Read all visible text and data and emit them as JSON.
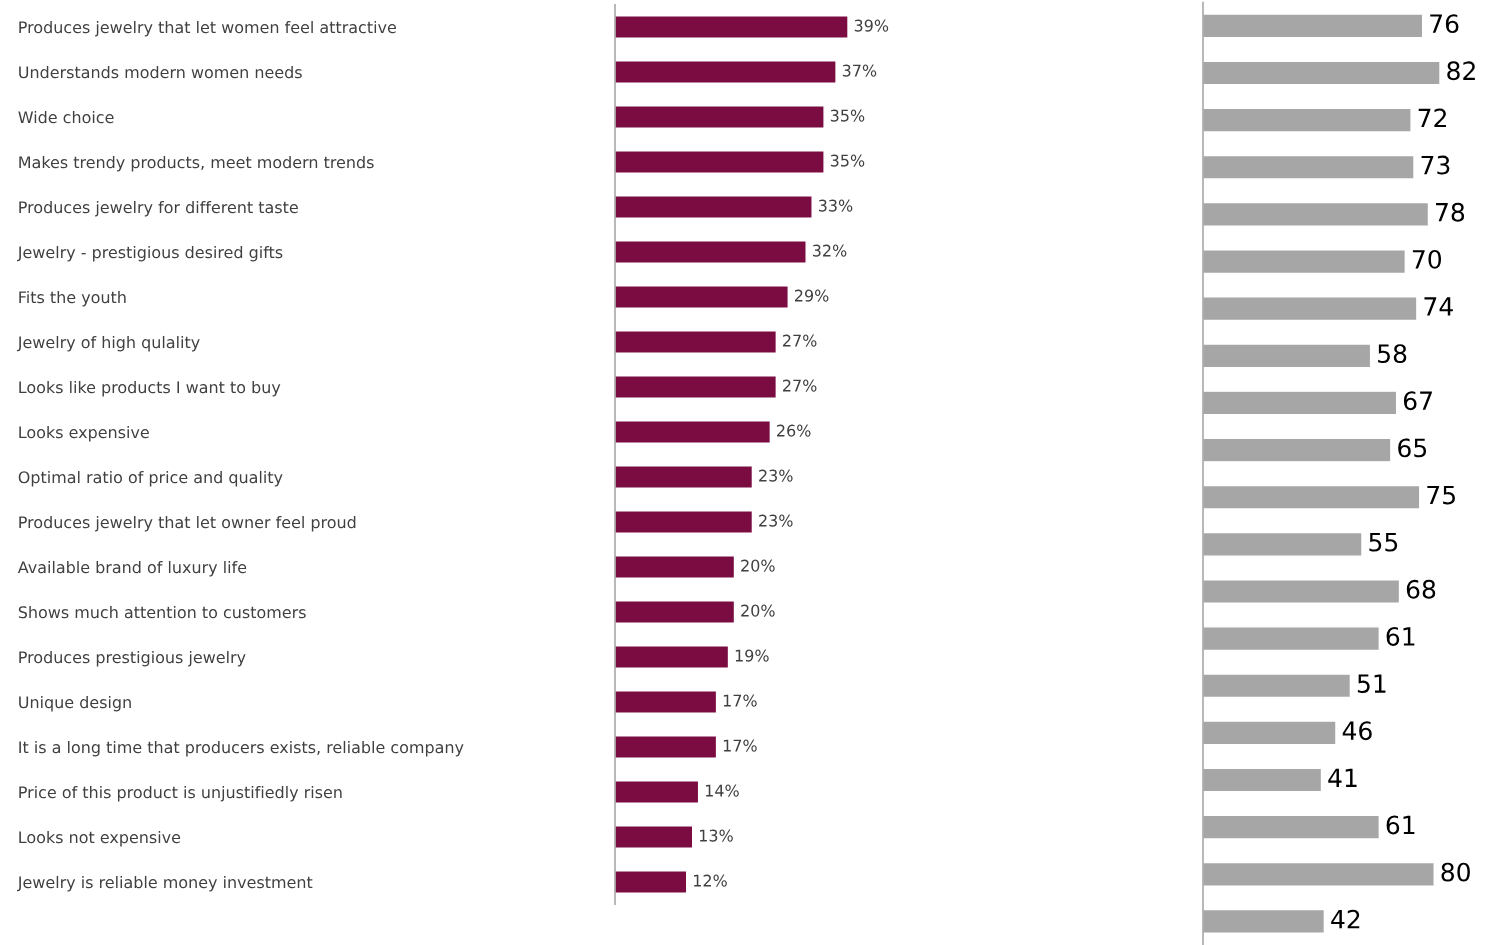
{
  "chart_data": [
    {
      "type": "bar",
      "orientation": "horizontal",
      "categories": [
        "Produces jewelry that let women feel attractive",
        "Understands modern women needs",
        "Wide choice",
        "Makes trendy products, meet modern trends",
        "Produces jewelry for different taste",
        "Jewelry - prestigious desired gifts",
        "Fits the youth",
        "Jewelry of high qulality",
        "Looks like products I want to buy",
        "Looks expensive",
        "Optimal ratio of price and quality",
        "Produces jewelry that let owner feel proud",
        "Available brand of luxury life",
        "Shows much attention to customers",
        "Produces prestigious jewelry",
        "Unique design",
        "It is a long time that producers exists, reliable company",
        "Price of this product is unjustifiedly risen",
        "Looks not expensive",
        "Jewelry is reliable money investment"
      ],
      "values": [
        39,
        37,
        35,
        35,
        33,
        32,
        29,
        27,
        27,
        26,
        23,
        23,
        20,
        20,
        19,
        17,
        17,
        14,
        13,
        12
      ],
      "value_labels": [
        "39%",
        "37%",
        "35%",
        "35%",
        "33%",
        "32%",
        "29%",
        "27%",
        "27%",
        "26%",
        "23%",
        "23%",
        "20%",
        "20%",
        "19%",
        "17%",
        "17%",
        "14%",
        "13%",
        "12%"
      ],
      "color": "#7b0c42",
      "tick_labels": "y",
      "grid": false,
      "legend": false
    },
    {
      "type": "bar",
      "orientation": "horizontal",
      "categories": [
        null,
        null,
        null,
        null,
        null,
        null,
        null,
        null,
        null,
        null,
        null,
        null,
        null,
        null,
        null,
        null,
        null,
        null,
        null,
        null
      ],
      "values": [
        76,
        82,
        72,
        73,
        78,
        70,
        74,
        58,
        67,
        65,
        75,
        55,
        68,
        61,
        51,
        46,
        41,
        61,
        80,
        42
      ],
      "data_labels": true,
      "color": "#a6a6a6",
      "tick_labels": false,
      "grid": false,
      "legend": false
    }
  ]
}
